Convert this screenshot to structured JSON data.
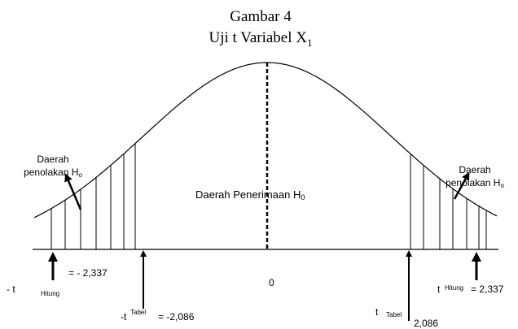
{
  "title": {
    "line1": "Gambar 4",
    "line2": "Uji t Variabel X",
    "line2_sub": "1"
  },
  "regions": {
    "left": {
      "line1": "Daerah",
      "line2": "penolakan H",
      "sub": "o"
    },
    "center": {
      "text": "Daerah Penerimaan H",
      "sub": "0"
    },
    "right": {
      "line1": "Daerah",
      "line2": "penolakan H",
      "sub": "o"
    }
  },
  "axis": {
    "center": "0"
  },
  "labels": {
    "left_hitung": {
      "t": "- t",
      "sub": "Hitung",
      "value": "= - 2,337"
    },
    "left_tabel": {
      "t": "-t",
      "sup": "Tabel",
      "value": "= -2,086"
    },
    "right_tabel": {
      "t": "t",
      "sub": "Tabel",
      "value": "2,086"
    },
    "right_hitung": {
      "t": "t",
      "sup": "Hitung",
      "value": "= 2,337"
    }
  }
}
